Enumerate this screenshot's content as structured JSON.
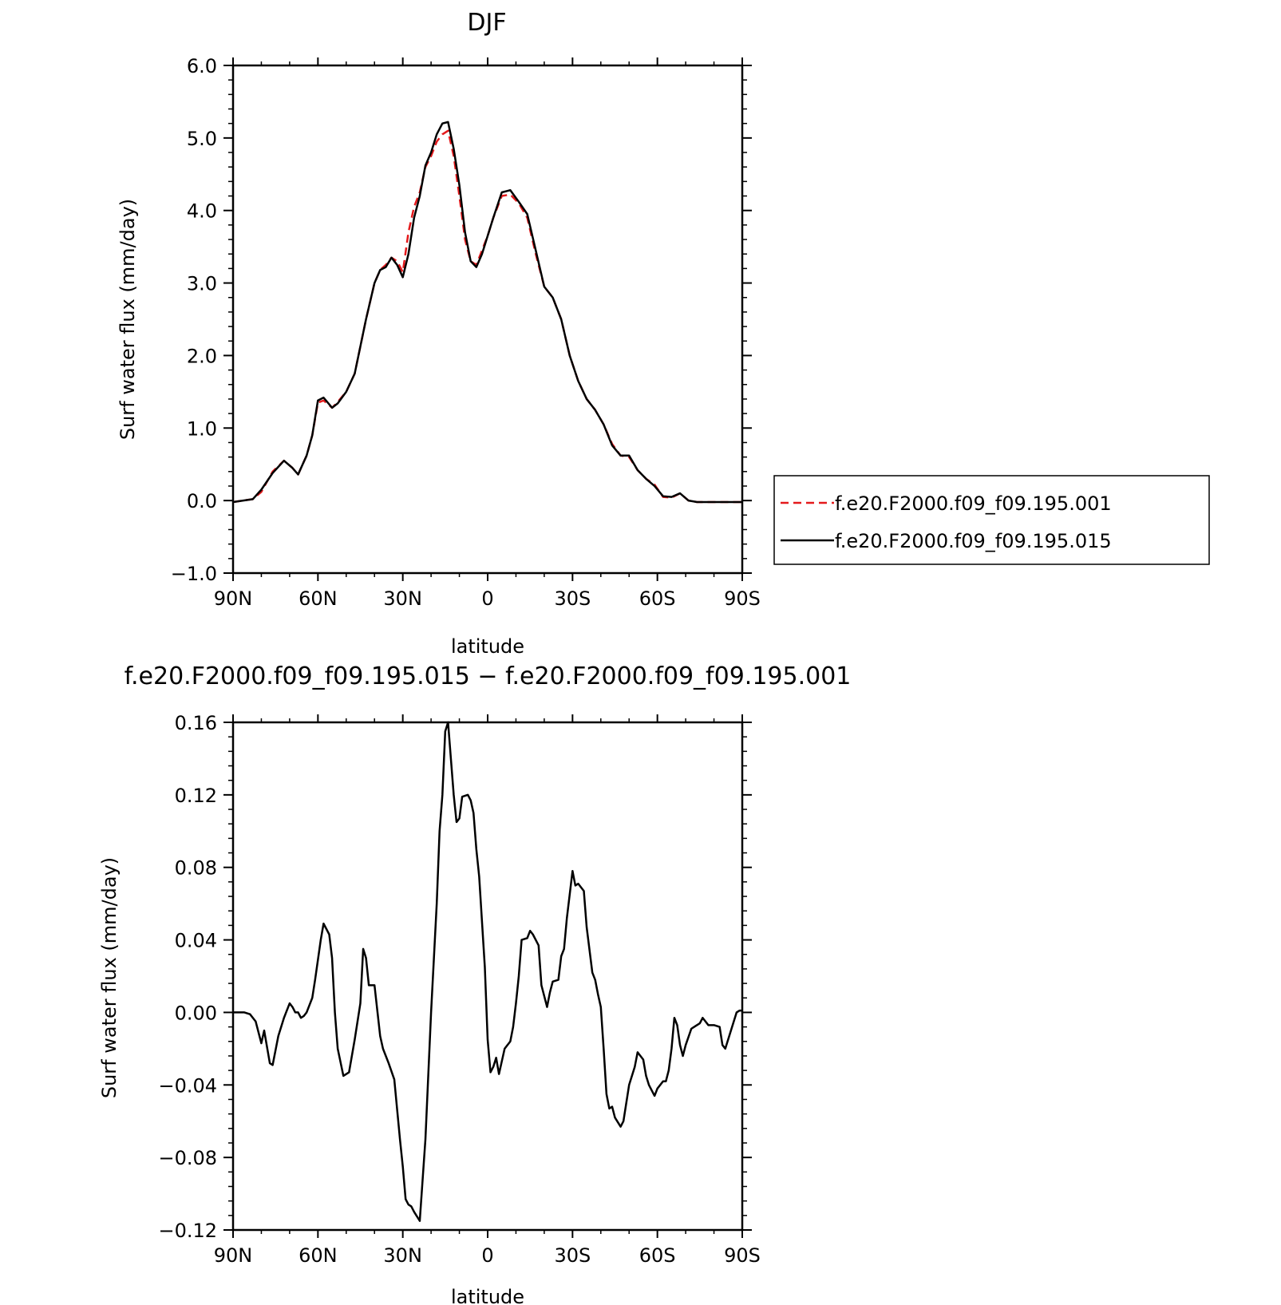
{
  "figure": {
    "top_title": "DJF",
    "bottom_title": "f.e20.F2000.f09_f09.195.015 − f.e20.F2000.f09_f09.195.001"
  },
  "colors": {
    "red": "#e41a1c",
    "black": "#000000"
  },
  "chart_data": [
    {
      "type": "line",
      "title": "DJF",
      "xlabel": "latitude",
      "ylabel": "Surf water flux (mm/day)",
      "xlim": [
        90,
        -90
      ],
      "ylim": [
        -1.0,
        6.0
      ],
      "xticks": [
        90,
        60,
        30,
        0,
        -30,
        -60,
        -90
      ],
      "xtick_labels": [
        "90N",
        "60N",
        "30N",
        "0",
        "30S",
        "60S",
        "90S"
      ],
      "yticks": [
        -1.0,
        0.0,
        1.0,
        2.0,
        3.0,
        4.0,
        5.0,
        6.0
      ],
      "ytick_labels": [
        "−1.0",
        "0.0",
        "1.0",
        "2.0",
        "3.0",
        "4.0",
        "5.0",
        "6.0"
      ],
      "legend_position": "right",
      "series": [
        {
          "name": "f.e20.F2000.f09_f09.195.001",
          "color": "#e41a1c",
          "dash": "dashed",
          "x": [
            90,
            83,
            80,
            76,
            72,
            69,
            67,
            64,
            62,
            60,
            58,
            55,
            53,
            50,
            47,
            43,
            40,
            38,
            36,
            34,
            32,
            30,
            28,
            26,
            24,
            22,
            20,
            18,
            16,
            14,
            12,
            10,
            8,
            6,
            4,
            2,
            0,
            -2,
            -5,
            -8,
            -11,
            -14,
            -17,
            -20,
            -23,
            -26,
            -29,
            -32,
            -35,
            -38,
            -41,
            -44,
            -47,
            -50,
            -53,
            -56,
            -59,
            -62,
            -65,
            -68,
            -71,
            -74,
            -77,
            -80,
            -83,
            -86,
            -90
          ],
          "y": [
            -0.02,
            0.02,
            0.12,
            0.4,
            0.55,
            0.45,
            0.36,
            0.62,
            0.9,
            1.35,
            1.38,
            1.28,
            1.36,
            1.5,
            1.75,
            2.5,
            3.0,
            3.18,
            3.25,
            3.35,
            3.3,
            3.15,
            3.7,
            4.05,
            4.25,
            4.6,
            4.75,
            4.95,
            5.05,
            5.1,
            4.75,
            4.2,
            3.6,
            3.3,
            3.25,
            3.45,
            3.65,
            3.9,
            4.2,
            4.22,
            4.1,
            3.9,
            3.4,
            2.95,
            2.8,
            2.5,
            2.0,
            1.65,
            1.4,
            1.25,
            1.05,
            0.78,
            0.62,
            0.6,
            0.42,
            0.3,
            0.22,
            0.05,
            0.04,
            0.1,
            0.0,
            -0.02,
            -0.02,
            -0.02,
            -0.02,
            -0.02,
            -0.02
          ]
        },
        {
          "name": "f.e20.F2000.f09_f09.195.015",
          "color": "#000000",
          "dash": "solid",
          "x": [
            90,
            83,
            80,
            76,
            72,
            69,
            67,
            64,
            62,
            60,
            58,
            55,
            53,
            50,
            47,
            43,
            40,
            38,
            36,
            34,
            32,
            30,
            28,
            26,
            24,
            22,
            20,
            18,
            16,
            14,
            12,
            10,
            8,
            6,
            4,
            2,
            0,
            -2,
            -5,
            -8,
            -11,
            -14,
            -17,
            -20,
            -23,
            -26,
            -29,
            -32,
            -35,
            -38,
            -41,
            -44,
            -47,
            -50,
            -53,
            -56,
            -59,
            -62,
            -65,
            -68,
            -71,
            -74,
            -77,
            -80,
            -83,
            -86,
            -90
          ],
          "y": [
            -0.02,
            0.02,
            0.15,
            0.38,
            0.55,
            0.45,
            0.36,
            0.62,
            0.9,
            1.38,
            1.42,
            1.28,
            1.34,
            1.5,
            1.75,
            2.5,
            3.0,
            3.18,
            3.22,
            3.35,
            3.25,
            3.08,
            3.4,
            3.9,
            4.2,
            4.62,
            4.8,
            5.05,
            5.2,
            5.22,
            4.85,
            4.35,
            3.7,
            3.3,
            3.22,
            3.4,
            3.65,
            3.9,
            4.25,
            4.28,
            4.12,
            3.95,
            3.45,
            2.95,
            2.8,
            2.5,
            2.0,
            1.65,
            1.4,
            1.25,
            1.05,
            0.76,
            0.62,
            0.62,
            0.42,
            0.3,
            0.2,
            0.06,
            0.05,
            0.1,
            0.0,
            -0.02,
            -0.02,
            -0.02,
            -0.02,
            -0.02,
            -0.02
          ]
        }
      ]
    },
    {
      "type": "line",
      "title": "f.e20.F2000.f09_f09.195.015 − f.e20.F2000.f09_f09.195.001",
      "xlabel": "latitude",
      "ylabel": "Surf water flux (mm/day)",
      "xlim": [
        90,
        -90
      ],
      "ylim": [
        -0.12,
        0.16
      ],
      "xticks": [
        90,
        60,
        30,
        0,
        -30,
        -60,
        -90
      ],
      "xtick_labels": [
        "90N",
        "60N",
        "30N",
        "0",
        "30S",
        "60S",
        "90S"
      ],
      "yticks": [
        -0.12,
        -0.08,
        -0.04,
        0.0,
        0.04,
        0.08,
        0.12,
        0.16
      ],
      "ytick_labels": [
        "−0.12",
        "−0.08",
        "−0.04",
        "0.00",
        "0.04",
        "0.08",
        "0.12",
        "0.16"
      ],
      "series": [
        {
          "color": "#000000",
          "dash": "solid",
          "x": [
            90,
            86,
            84,
            82,
            80,
            79,
            77,
            76,
            74,
            72,
            70,
            69,
            68,
            67,
            66,
            65,
            64,
            62,
            61,
            59,
            58,
            56,
            55,
            54,
            53,
            51,
            49,
            47,
            45,
            44,
            43,
            42,
            41,
            40,
            38,
            37,
            35,
            33,
            31,
            30,
            29,
            28,
            27,
            26,
            24,
            22,
            20,
            18,
            17,
            16,
            15,
            14,
            13,
            12,
            11,
            10,
            9,
            7,
            6,
            5,
            4,
            3,
            2,
            1,
            0,
            -1,
            -2,
            -3,
            -4,
            -6,
            -8,
            -9,
            -10,
            -11,
            -12,
            -14,
            -15,
            -16,
            -18,
            -19,
            -21,
            -22,
            -23,
            -25,
            -26,
            -27,
            -28,
            -30,
            -31,
            -32,
            -34,
            -35,
            -37,
            -38,
            -39,
            -40,
            -41,
            -42,
            -43,
            -44,
            -45,
            -47,
            -48,
            -50,
            -52,
            -53,
            -55,
            -56,
            -57,
            -59,
            -60,
            -62,
            -63,
            -64,
            -65,
            -66,
            -67,
            -68,
            -69,
            -70,
            -72,
            -73,
            -75,
            -76,
            -77,
            -78,
            -80,
            -82,
            -83,
            -84,
            -86,
            -87,
            -88,
            -89,
            -90
          ],
          "y": [
            0.0,
            0.0,
            -0.001,
            -0.005,
            -0.017,
            -0.01,
            -0.028,
            -0.029,
            -0.013,
            -0.003,
            0.005,
            0.003,
            0.0,
            0.0,
            -0.003,
            -0.002,
            0.0,
            0.008,
            0.018,
            0.04,
            0.049,
            0.043,
            0.03,
            0.0,
            -0.02,
            -0.035,
            -0.033,
            -0.015,
            0.005,
            0.035,
            0.03,
            0.015,
            0.015,
            0.015,
            -0.013,
            -0.02,
            -0.028,
            -0.037,
            -0.07,
            -0.085,
            -0.103,
            -0.106,
            -0.107,
            -0.11,
            -0.115,
            -0.07,
            0.0,
            0.06,
            0.1,
            0.12,
            0.155,
            0.16,
            0.14,
            0.12,
            0.105,
            0.107,
            0.119,
            0.12,
            0.117,
            0.11,
            0.09,
            0.075,
            0.05,
            0.025,
            -0.015,
            -0.033,
            -0.03,
            -0.025,
            -0.034,
            -0.02,
            -0.016,
            -0.008,
            0.005,
            0.02,
            0.04,
            0.041,
            0.045,
            0.043,
            0.037,
            0.015,
            0.003,
            0.011,
            0.017,
            0.018,
            0.031,
            0.035,
            0.052,
            0.078,
            0.07,
            0.071,
            0.067,
            0.047,
            0.022,
            0.018,
            0.01,
            0.003,
            -0.02,
            -0.045,
            -0.053,
            -0.052,
            -0.058,
            -0.063,
            -0.06,
            -0.04,
            -0.03,
            -0.022,
            -0.026,
            -0.035,
            -0.04,
            -0.046,
            -0.042,
            -0.038,
            -0.038,
            -0.032,
            -0.02,
            -0.003,
            -0.007,
            -0.018,
            -0.024,
            -0.018,
            -0.009,
            -0.008,
            -0.006,
            -0.003,
            -0.005,
            -0.007,
            -0.007,
            -0.008,
            -0.018,
            -0.02,
            -0.01,
            -0.005,
            0.0,
            0.001,
            0.001
          ]
        }
      ]
    }
  ]
}
